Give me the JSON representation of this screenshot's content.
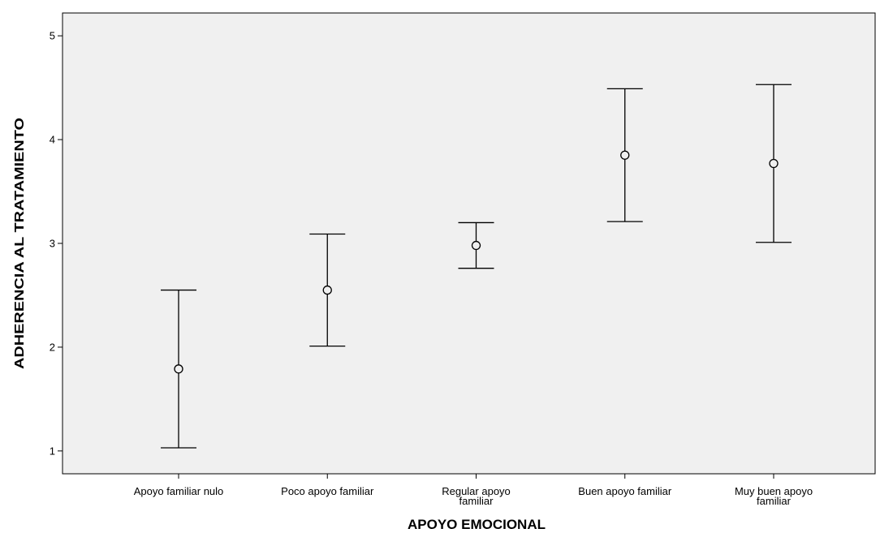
{
  "chart_data": {
    "type": "errorbar",
    "xlabel": "APOYO EMOCIONAL",
    "ylabel": "ADHERENCIA AL TRATAMIENTO",
    "categories": [
      [
        "Apoyo familiar nulo"
      ],
      [
        "Poco apoyo familiar"
      ],
      [
        "Regular apoyo",
        "familiar"
      ],
      [
        "Buen apoyo familiar"
      ],
      [
        "Muy buen apoyo",
        "familiar"
      ]
    ],
    "means": [
      1.79,
      2.55,
      2.98,
      3.85,
      3.77
    ],
    "lower": [
      1.03,
      2.01,
      2.76,
      3.21,
      3.01
    ],
    "upper": [
      2.55,
      3.09,
      3.2,
      4.49,
      4.53
    ],
    "yticks": [
      1,
      2,
      3,
      4,
      5
    ],
    "ylim": [
      0.78,
      5.22
    ],
    "grid": false,
    "plot_background": "#f0f0f0",
    "line_color": "#000000"
  }
}
